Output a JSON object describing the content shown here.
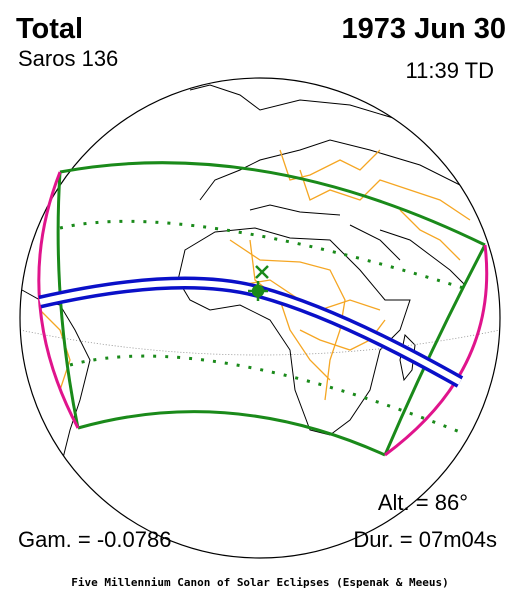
{
  "header": {
    "type": "Total",
    "saros": "Saros 136",
    "date": "1973 Jun 30",
    "time": "11:39 TD"
  },
  "stats": {
    "altitude": "Alt. = 86°",
    "gamma": "Gam. = -0.0786",
    "duration": "Dur. = 07m04s"
  },
  "credit": "Five Millennium Canon of Solar Eclipses (Espenak & Meeus)"
}
